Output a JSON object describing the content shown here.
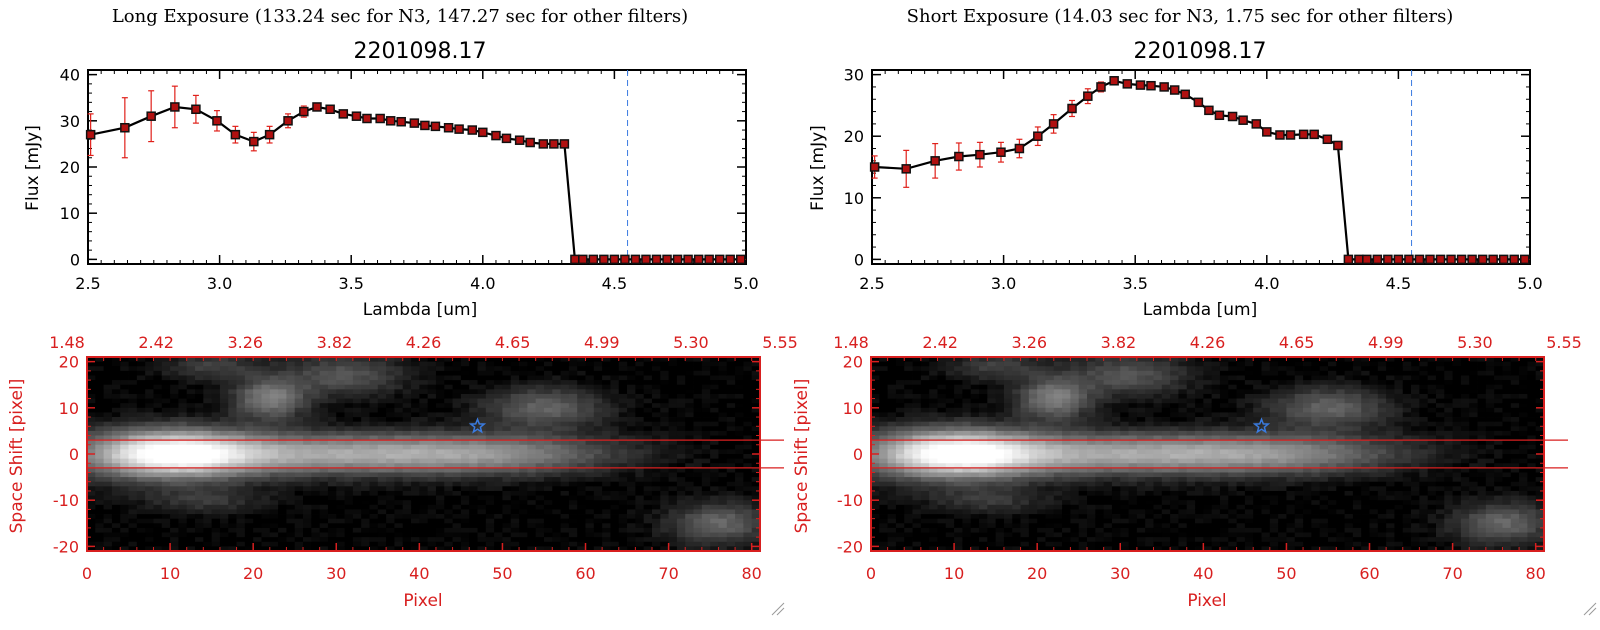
{
  "panels": [
    {
      "caption": "Long Exposure (133.24 sec for N3, 147.27 sec for other filters)",
      "spectrum": {
        "title": "2201098.17",
        "xlabel": "Lambda [um]",
        "ylabel": "Flux [mJy]",
        "xticks": [
          "2.5",
          "3.0",
          "3.5",
          "4.0",
          "4.5",
          "5.0"
        ],
        "yticks": [
          "0",
          "10",
          "20",
          "30",
          "40"
        ]
      },
      "image": {
        "top_ticks": [
          "1.48",
          "2.42",
          "3.26",
          "3.82",
          "4.26",
          "4.65",
          "4.99",
          "5.30",
          "5.55"
        ],
        "xticks": [
          "0",
          "10",
          "20",
          "30",
          "40",
          "50",
          "60",
          "70",
          "80"
        ],
        "yticks": [
          "20",
          "10",
          "0",
          "-10",
          "-20"
        ],
        "xlabel": "Pixel",
        "ylabel": "Space Shift [pixel]"
      }
    },
    {
      "caption": "Short Exposure (14.03 sec for N3, 1.75 sec for other filters)",
      "spectrum": {
        "title": "2201098.17",
        "xlabel": "Lambda [um]",
        "ylabel": "Flux [mJy]",
        "xticks": [
          "2.5",
          "3.0",
          "3.5",
          "4.0",
          "4.5",
          "5.0"
        ],
        "yticks": [
          "0",
          "10",
          "20",
          "30"
        ]
      },
      "image": {
        "top_ticks": [
          "1.48",
          "2.42",
          "3.26",
          "3.82",
          "4.26",
          "4.65",
          "4.99",
          "5.30",
          "5.55"
        ],
        "xticks": [
          "0",
          "10",
          "20",
          "30",
          "40",
          "50",
          "60",
          "70",
          "80"
        ],
        "yticks": [
          "20",
          "10",
          "0",
          "-10",
          "-20"
        ],
        "xlabel": "Pixel",
        "ylabel": "Space Shift [pixel]"
      }
    }
  ],
  "colors": {
    "axis": "#000000",
    "series": "#000000",
    "errorbar": "#e0201a",
    "marker_fill": "#b01010",
    "red_axis": "#d81f1f",
    "marker_line": "#3a7be0"
  },
  "chart_data": [
    {
      "type": "line",
      "title": "2201098.17",
      "xlabel": "Lambda [um]",
      "ylabel": "Flux [mJy]",
      "xlim": [
        2.5,
        5.0
      ],
      "ylim": [
        -1,
        41
      ],
      "vline_x": 4.55,
      "series": [
        {
          "x": [
            2.51,
            2.64,
            2.74,
            2.83,
            2.91,
            2.99,
            3.06,
            3.13,
            3.19,
            3.26,
            3.32,
            3.37,
            3.42,
            3.47,
            3.52,
            3.56,
            3.61,
            3.65,
            3.69,
            3.74,
            3.78,
            3.82,
            3.87,
            3.91,
            3.96,
            4.0,
            4.05,
            4.09,
            4.14,
            4.18,
            4.23,
            4.27,
            4.31,
            4.35,
            4.38,
            4.42,
            4.46,
            4.5,
            4.54,
            4.58,
            4.62,
            4.66,
            4.7,
            4.74,
            4.78,
            4.82,
            4.86,
            4.9,
            4.94,
            4.98
          ],
          "y": [
            27,
            28.5,
            31,
            33,
            32.5,
            30,
            27,
            25.5,
            27,
            30,
            32,
            33,
            32.5,
            31.5,
            31,
            30.5,
            30.5,
            30,
            29.8,
            29.5,
            29,
            28.8,
            28.5,
            28.2,
            28,
            27.5,
            26.8,
            26.2,
            25.8,
            25.3,
            25,
            25,
            25,
            0,
            0,
            0,
            0,
            0,
            0,
            0,
            0,
            0,
            0,
            0,
            0,
            0,
            0,
            0,
            0,
            0
          ],
          "err": [
            4.5,
            6.5,
            5.5,
            4.5,
            3,
            2.2,
            1.8,
            2,
            1.8,
            1.5,
            1.2,
            0.8,
            0.5,
            0.4,
            0.4,
            0.4,
            0.4,
            0.4,
            0.4,
            0.4,
            0.4,
            0.4,
            0.4,
            0.4,
            0.4,
            0.4,
            0.4,
            0.4,
            0.4,
            0.4,
            0.4,
            0.4,
            0.4,
            0,
            0,
            0,
            0,
            0,
            0,
            0,
            0,
            0,
            0,
            0,
            0,
            0,
            0,
            0,
            0,
            0
          ]
        }
      ]
    },
    {
      "type": "line",
      "title": "2201098.17",
      "xlabel": "Lambda [um]",
      "ylabel": "Flux [mJy]",
      "xlim": [
        2.5,
        5.0
      ],
      "ylim": [
        -0.75,
        30.75
      ],
      "vline_x": 4.55,
      "series": [
        {
          "x": [
            2.51,
            2.63,
            2.74,
            2.83,
            2.91,
            2.99,
            3.06,
            3.13,
            3.19,
            3.26,
            3.32,
            3.37,
            3.42,
            3.47,
            3.52,
            3.56,
            3.61,
            3.65,
            3.69,
            3.74,
            3.78,
            3.82,
            3.87,
            3.91,
            3.96,
            4.0,
            4.05,
            4.09,
            4.14,
            4.18,
            4.23,
            4.27,
            4.31,
            4.35,
            4.38,
            4.42,
            4.46,
            4.5,
            4.54,
            4.58,
            4.62,
            4.66,
            4.7,
            4.74,
            4.78,
            4.82,
            4.86,
            4.9,
            4.94,
            4.98
          ],
          "y": [
            15,
            14.7,
            16,
            16.7,
            17,
            17.4,
            18,
            20,
            22,
            24.5,
            26.5,
            28,
            29,
            28.5,
            28.3,
            28.2,
            28,
            27.5,
            26.8,
            25.5,
            24.2,
            23.4,
            23.2,
            22.6,
            22,
            20.7,
            20.2,
            20.2,
            20.3,
            20.3,
            19.5,
            18.5,
            0,
            0,
            0,
            0,
            0,
            0,
            0,
            0,
            0,
            0,
            0,
            0,
            0,
            0,
            0,
            0,
            0,
            0
          ],
          "err": [
            1.8,
            3,
            2.8,
            2.2,
            2,
            1.6,
            1.5,
            1.5,
            1.5,
            1.3,
            1.2,
            0.8,
            0.6,
            0.4,
            0.4,
            0.4,
            0.4,
            0.4,
            0.4,
            0.4,
            0.4,
            0.4,
            0.4,
            0.4,
            0.4,
            0.4,
            0.4,
            0.4,
            0.4,
            0.4,
            0.4,
            0.4,
            0,
            0,
            0,
            0,
            0,
            0,
            0,
            0,
            0,
            0,
            0,
            0,
            0,
            0,
            0,
            0,
            0,
            0
          ]
        }
      ]
    },
    {
      "type": "heatmap",
      "xlabel": "Pixel",
      "ylabel": "Space Shift [pixel]",
      "xlim": [
        0,
        81
      ],
      "ylim": [
        -21,
        21
      ],
      "band_y": [
        -3,
        3
      ],
      "star": {
        "x": 47,
        "y": 6
      },
      "sources": [
        {
          "x": 10,
          "y": 0,
          "sx": 7,
          "sy": 3.5,
          "amp": 1.0
        },
        {
          "x": 30,
          "y": 0,
          "sx": 14,
          "sy": 3,
          "amp": 0.55
        },
        {
          "x": 50,
          "y": 0,
          "sx": 10,
          "sy": 3,
          "amp": 0.32
        },
        {
          "x": 22,
          "y": 12,
          "sx": 3,
          "sy": 3,
          "amp": 0.42
        },
        {
          "x": 31,
          "y": 17,
          "sx": 5,
          "sy": 3,
          "amp": 0.25
        },
        {
          "x": 55,
          "y": 10,
          "sx": 5,
          "sy": 3,
          "amp": 0.3
        },
        {
          "x": 76,
          "y": -15,
          "sx": 4,
          "sy": 3,
          "amp": 0.32
        },
        {
          "x": 15,
          "y": 19,
          "sx": 4,
          "sy": 2,
          "amp": 0.18
        },
        {
          "x": 14,
          "y": -10,
          "sx": 5,
          "sy": 2,
          "amp": 0.15
        }
      ]
    },
    {
      "type": "heatmap",
      "xlabel": "Pixel",
      "ylabel": "Space Shift [pixel]",
      "xlim": [
        0,
        81
      ],
      "ylim": [
        -21,
        21
      ],
      "band_y": [
        -3,
        3
      ],
      "star": {
        "x": 47,
        "y": 6
      },
      "sources": [
        {
          "x": 10,
          "y": 0,
          "sx": 7,
          "sy": 3.5,
          "amp": 1.0
        },
        {
          "x": 30,
          "y": 0,
          "sx": 14,
          "sy": 3,
          "amp": 0.55
        },
        {
          "x": 50,
          "y": 0,
          "sx": 10,
          "sy": 3,
          "amp": 0.32
        },
        {
          "x": 22,
          "y": 12,
          "sx": 3,
          "sy": 3,
          "amp": 0.42
        },
        {
          "x": 31,
          "y": 17,
          "sx": 5,
          "sy": 3,
          "amp": 0.25
        },
        {
          "x": 55,
          "y": 10,
          "sx": 5,
          "sy": 3,
          "amp": 0.3
        },
        {
          "x": 76,
          "y": -15,
          "sx": 4,
          "sy": 3,
          "amp": 0.32
        },
        {
          "x": 15,
          "y": 19,
          "sx": 4,
          "sy": 2,
          "amp": 0.18
        },
        {
          "x": 14,
          "y": -10,
          "sx": 5,
          "sy": 2,
          "amp": 0.15
        }
      ]
    }
  ]
}
